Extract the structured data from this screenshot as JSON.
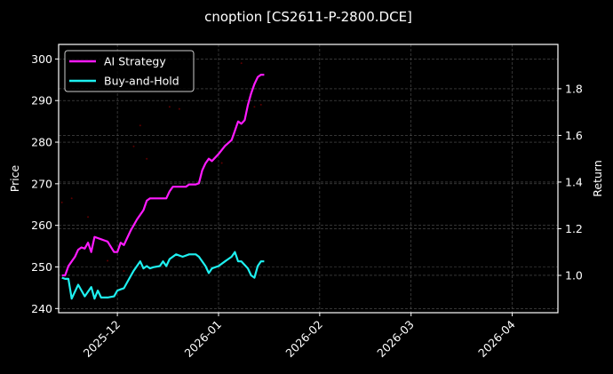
{
  "chart_data": {
    "type": "line",
    "title": "cnoption [CS2611-P-2800.DCE]",
    "xlabel": "",
    "ylabel": "Price",
    "ylabel_right": "Return",
    "x_ticks": [
      "2025-12",
      "2026-01",
      "2026-02",
      "2026-03",
      "2026-04"
    ],
    "y_ticks_left": [
      240,
      250,
      260,
      270,
      280,
      290,
      300
    ],
    "y_ticks_right": [
      1.0,
      1.2,
      1.4,
      1.6,
      1.8
    ],
    "ylim_left": [
      239,
      303.5
    ],
    "ylim_right": [
      0.84,
      1.99
    ],
    "xlim": [
      "2025-11-13",
      "2026-04-15"
    ],
    "grid": true,
    "legend_position": "upper left",
    "background": "#000000",
    "series": [
      {
        "name": "AI Strategy",
        "axis": "right",
        "color": "#ff1aff",
        "x": [
          "2025-11-14",
          "2025-11-15",
          "2025-11-16",
          "2025-11-17",
          "2025-11-18",
          "2025-11-19",
          "2025-11-20",
          "2025-11-21",
          "2025-11-22",
          "2025-11-23",
          "2025-11-24",
          "2025-11-25",
          "2025-11-26",
          "2025-11-27",
          "2025-11-28",
          "2025-11-30",
          "2025-12-01",
          "2025-12-02",
          "2025-12-03",
          "2025-12-04",
          "2025-12-05",
          "2025-12-07",
          "2025-12-09",
          "2025-12-10",
          "2025-12-11",
          "2025-12-12",
          "2025-12-14",
          "2025-12-16",
          "2025-12-17",
          "2025-12-18",
          "2025-12-20",
          "2025-12-22",
          "2025-12-23",
          "2025-12-25",
          "2025-12-26",
          "2025-12-27",
          "2025-12-28",
          "2025-12-29",
          "2025-12-30",
          "2026-01-01",
          "2026-01-03",
          "2026-01-05",
          "2026-01-06",
          "2026-01-07",
          "2026-01-08",
          "2026-01-09",
          "2026-01-10",
          "2026-01-11",
          "2026-01-12",
          "2026-01-13",
          "2026-01-14",
          "2026-01-15"
        ],
        "values": [
          1.0,
          1.0,
          1.04,
          1.06,
          1.08,
          1.11,
          1.12,
          1.115,
          1.14,
          1.1,
          1.165,
          1.16,
          1.155,
          1.15,
          1.145,
          1.1,
          1.1,
          1.14,
          1.13,
          1.16,
          1.19,
          1.24,
          1.28,
          1.32,
          1.33,
          1.33,
          1.33,
          1.33,
          1.36,
          1.38,
          1.38,
          1.38,
          1.39,
          1.39,
          1.395,
          1.45,
          1.48,
          1.5,
          1.49,
          1.52,
          1.555,
          1.58,
          1.62,
          1.66,
          1.65,
          1.665,
          1.73,
          1.78,
          1.82,
          1.85,
          1.86,
          1.86
        ]
      },
      {
        "name": "Buy-and-Hold",
        "axis": "right",
        "color": "#1ef0f0",
        "x": [
          "2025-11-14",
          "2025-11-15",
          "2025-11-16",
          "2025-11-17",
          "2025-11-19",
          "2025-11-21",
          "2025-11-23",
          "2025-11-24",
          "2025-11-25",
          "2025-11-26",
          "2025-11-28",
          "2025-11-30",
          "2025-12-01",
          "2025-12-02",
          "2025-12-03",
          "2025-12-04",
          "2025-12-06",
          "2025-12-08",
          "2025-12-09",
          "2025-12-10",
          "2025-12-11",
          "2025-12-12",
          "2025-12-14",
          "2025-12-15",
          "2025-12-16",
          "2025-12-17",
          "2025-12-19",
          "2025-12-21",
          "2025-12-23",
          "2025-12-25",
          "2025-12-26",
          "2025-12-28",
          "2025-12-29",
          "2025-12-30",
          "2026-01-01",
          "2026-01-03",
          "2026-01-05",
          "2026-01-06",
          "2026-01-07",
          "2026-01-08",
          "2026-01-10",
          "2026-01-11",
          "2026-01-12",
          "2026-01-13",
          "2026-01-14",
          "2026-01-15"
        ],
        "values": [
          0.99,
          0.985,
          0.985,
          0.9,
          0.96,
          0.91,
          0.95,
          0.9,
          0.935,
          0.905,
          0.905,
          0.91,
          0.935,
          0.94,
          0.945,
          0.97,
          1.02,
          1.06,
          1.03,
          1.04,
          1.03,
          1.035,
          1.04,
          1.06,
          1.04,
          1.07,
          1.09,
          1.08,
          1.09,
          1.09,
          1.08,
          1.04,
          1.01,
          1.03,
          1.04,
          1.06,
          1.08,
          1.1,
          1.06,
          1.06,
          1.03,
          1.0,
          0.99,
          1.04,
          1.06,
          1.06
        ]
      },
      {
        "name": "Price (markers)",
        "axis": "left",
        "color": "#5a0000",
        "x": [
          "2025-11-14",
          "2025-11-17",
          "2025-11-22",
          "2025-11-28",
          "2025-12-03",
          "2025-12-06",
          "2025-12-08",
          "2025-12-10",
          "2025-12-17",
          "2025-12-20",
          "2026-01-02",
          "2026-01-08",
          "2026-01-12",
          "2026-01-14"
        ],
        "values": [
          265.5,
          266.5,
          262,
          251.5,
          249,
          279,
          284,
          276,
          288.5,
          288,
          275,
          299,
          288.5,
          289
        ]
      }
    ]
  },
  "legend": {
    "items": [
      {
        "label": "AI Strategy",
        "color": "#ff1aff"
      },
      {
        "label": "Buy-and-Hold",
        "color": "#1ef0f0"
      }
    ]
  },
  "colors": {
    "background": "#000000",
    "axes": "#ffffff",
    "grid": "#555555",
    "text": "#ffffff"
  }
}
